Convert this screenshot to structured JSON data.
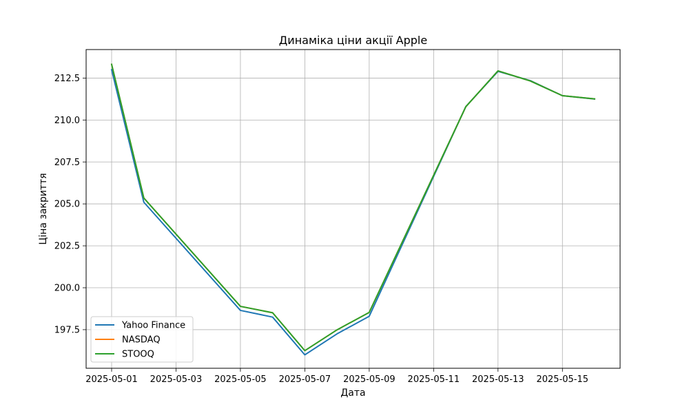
{
  "chart_data": {
    "type": "line",
    "title": "Динаміка ціни акції Apple",
    "xlabel": "Дата",
    "ylabel": "Ціна закриття",
    "x": [
      "2025-05-01",
      "2025-05-02",
      "2025-05-05",
      "2025-05-06",
      "2025-05-07",
      "2025-05-08",
      "2025-05-09",
      "2025-05-12",
      "2025-05-13",
      "2025-05-14",
      "2025-05-15",
      "2025-05-16"
    ],
    "x_tick_labels": [
      "2025-05-01",
      "2025-05-03",
      "2025-05-05",
      "2025-05-07",
      "2025-05-09",
      "2025-05-11",
      "2025-05-13",
      "2025-05-15"
    ],
    "y_tick_labels": [
      "197.5",
      "200.0",
      "202.5",
      "205.0",
      "207.5",
      "210.0",
      "212.5"
    ],
    "xlim": [
      "2025-04-30T05:00",
      "2025-05-16T19:00"
    ],
    "ylim": [
      195.2,
      214.2
    ],
    "grid": true,
    "legend_position": "lower left",
    "series": [
      {
        "name": "Yahoo Finance",
        "color": "#1f77b4",
        "values": [
          213.0,
          205.1,
          198.65,
          198.25,
          196.0,
          197.25,
          198.3,
          210.8,
          212.9,
          212.35,
          211.45,
          211.25
        ]
      },
      {
        "name": "NASDAQ",
        "color": "#ff7f0e",
        "values": [
          213.32,
          205.35,
          198.89,
          198.51,
          196.25,
          197.49,
          198.53,
          210.79,
          212.93,
          212.33,
          211.45,
          211.26
        ]
      },
      {
        "name": "STOOQ",
        "color": "#2ca02c",
        "values": [
          213.32,
          205.35,
          198.89,
          198.51,
          196.25,
          197.49,
          198.53,
          210.79,
          212.93,
          212.33,
          211.45,
          211.26
        ]
      }
    ]
  }
}
